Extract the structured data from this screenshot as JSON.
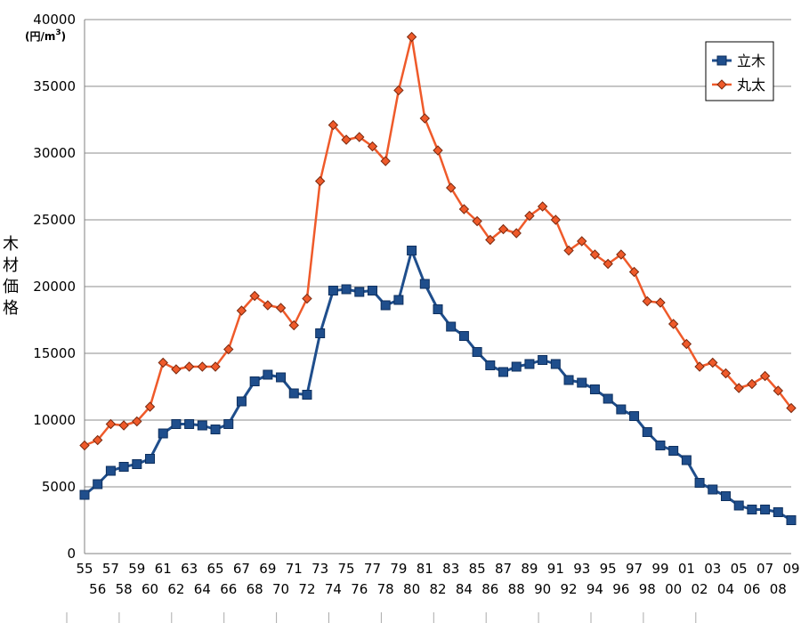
{
  "chart_data": {
    "type": "line",
    "title": "",
    "ylabel": "木材価格",
    "unit_label": "(円/m",
    "unit_sup": "3",
    "unit_close": ")",
    "ylim": [
      0,
      40000
    ],
    "yticks": [
      0,
      5000,
      10000,
      15000,
      20000,
      25000,
      30000,
      35000,
      40000
    ],
    "grid": true,
    "legend_position": "top-right",
    "x_labels_top": [
      "55",
      "57",
      "59",
      "61",
      "63",
      "65",
      "67",
      "69",
      "71",
      "73",
      "75",
      "77",
      "79",
      "81",
      "83",
      "85",
      "87",
      "89",
      "91",
      "93",
      "95",
      "97",
      "99",
      "01",
      "03",
      "05",
      "07",
      "09"
    ],
    "x_labels_bottom": [
      "56",
      "58",
      "60",
      "62",
      "64",
      "66",
      "68",
      "70",
      "72",
      "74",
      "76",
      "78",
      "80",
      "82",
      "84",
      "86",
      "88",
      "90",
      "92",
      "94",
      "96",
      "98",
      "00",
      "02",
      "04",
      "06",
      "08"
    ],
    "series": [
      {
        "name": "立木",
        "color": "#1f4e8c",
        "marker": "square",
        "values": [
          4400,
          5200,
          6200,
          6500,
          6700,
          7100,
          9000,
          9700,
          9700,
          9600,
          9300,
          9700,
          11400,
          12900,
          13400,
          13200,
          12000,
          11900,
          16500,
          19700,
          19800,
          19600,
          19700,
          18600,
          19000,
          22700,
          20200,
          18300,
          17000,
          16300,
          15100,
          14100,
          13600,
          14000,
          14200,
          14500,
          14200,
          13000,
          12800,
          12300,
          11600,
          10800,
          10300,
          9100,
          8100,
          7700,
          7000,
          5300,
          4800,
          4300,
          3600,
          3300,
          3300,
          3100,
          2500
        ]
      },
      {
        "name": "丸太",
        "color": "#ef5a2a",
        "marker": "diamond",
        "values": [
          8100,
          8500,
          9700,
          9600,
          9900,
          11000,
          14300,
          13800,
          14000,
          14000,
          14000,
          15300,
          18200,
          19300,
          18600,
          18400,
          17100,
          19100,
          27900,
          32100,
          31000,
          31200,
          30500,
          29400,
          34700,
          38700,
          32600,
          30200,
          27400,
          25800,
          24900,
          23500,
          24300,
          24000,
          25300,
          26000,
          25000,
          22700,
          23400,
          22400,
          21700,
          22400,
          21100,
          18900,
          18800,
          17200,
          15700,
          14000,
          14300,
          13500,
          12400,
          12700,
          13300,
          12200,
          10900
        ]
      }
    ]
  }
}
